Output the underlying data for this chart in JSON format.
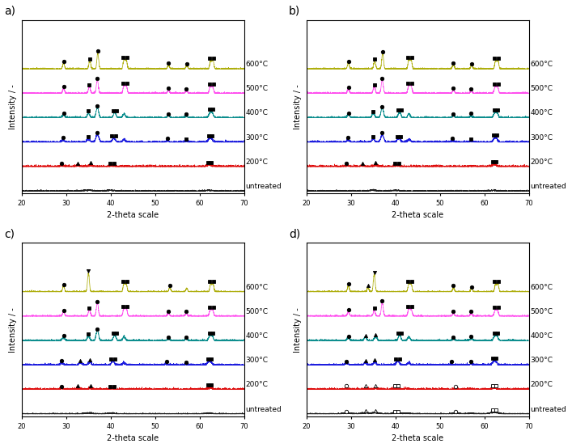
{
  "panel_labels": [
    "a)",
    "b)",
    "c)",
    "d)"
  ],
  "xlabel": "2-theta scale",
  "ylabel": "Intensity / -",
  "xlim": [
    20,
    70
  ],
  "temp_labels": [
    "600°C",
    "500°C",
    "400°C",
    "300°C",
    "200°C",
    "untreated"
  ],
  "line_colors": [
    "#aaaa00",
    "#ff44ee",
    "#008888",
    "#1111dd",
    "#dd0000",
    "#111111"
  ],
  "offsets": [
    0.5,
    0.4,
    0.3,
    0.2,
    0.1,
    0.0
  ],
  "background_color": "#ffffff",
  "panel_label_fontsize": 10,
  "axis_label_fontsize": 7,
  "tick_label_fontsize": 6,
  "temp_label_fontsize": 6.5,
  "linewidth": 0.55,
  "noise_base": 0.003,
  "marker_size": 3.2
}
